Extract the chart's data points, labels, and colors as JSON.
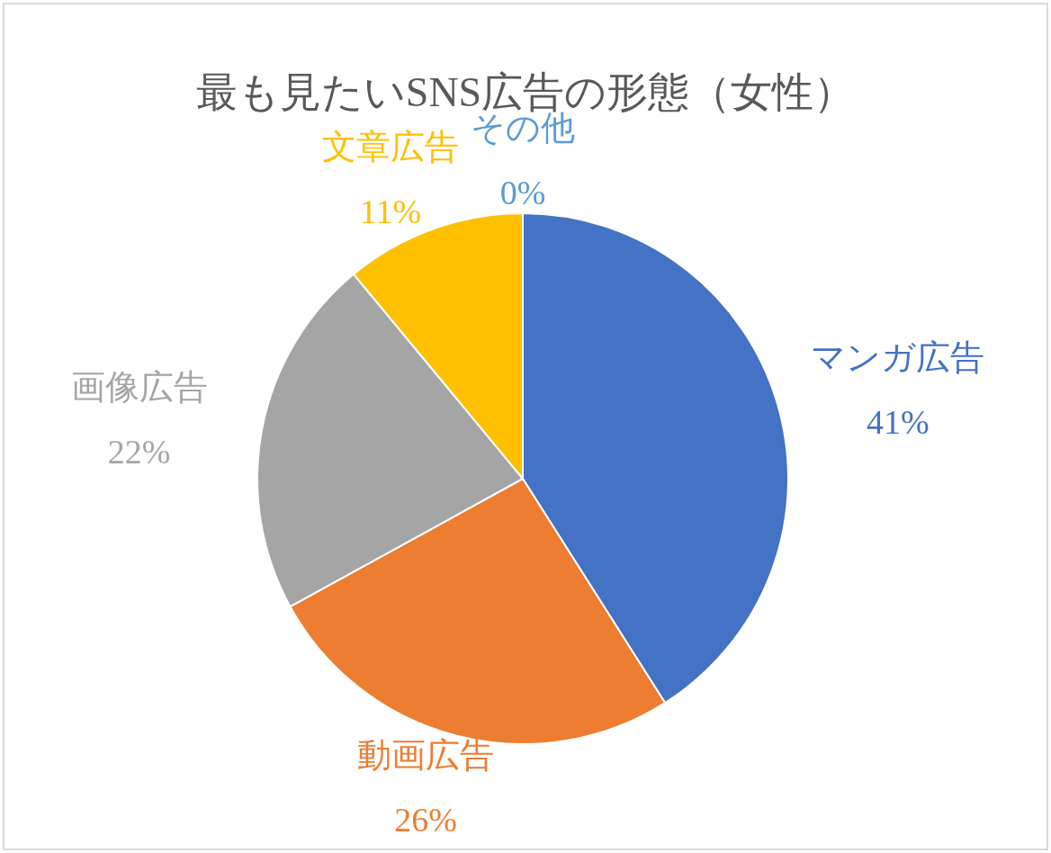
{
  "chart_data": {
    "type": "pie",
    "title": "最も見たいSNS広告の形態（女性）",
    "categories": [
      "マンガ広告",
      "動画広告",
      "画像広告",
      "文章広告",
      "その他"
    ],
    "values": [
      41,
      26,
      22,
      11,
      0
    ],
    "colors": [
      "#4472c4",
      "#ed7d31",
      "#a5a5a5",
      "#ffc000",
      "#5b9bd5"
    ],
    "value_labels": [
      "41%",
      "26%",
      "22%",
      "11%",
      "0%"
    ]
  }
}
